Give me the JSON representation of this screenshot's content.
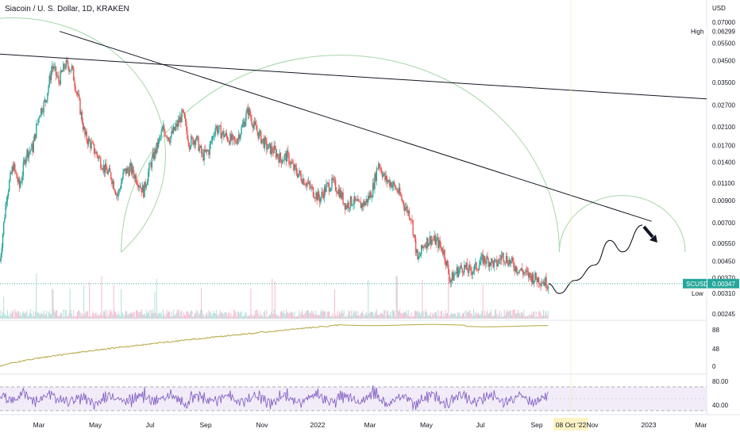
{
  "header": {
    "title": "Siacoin / U. S. Dollar, 1D, KRAKEN",
    "currency": "USD"
  },
  "colors": {
    "up": "#26a69a",
    "down": "#ef5350",
    "cycle_arc": "#a5d6a7",
    "trendline": "#131722",
    "price_line": "#26a69a",
    "volume_up": "#b2dfdb",
    "volume_down": "#f8bbd0",
    "obv_line": "#b5a642",
    "rsi_line": "#7e57c2",
    "rsi_band": "#ede7f6"
  },
  "price_axis": {
    "ticks": [
      "0.07000",
      "0.05500",
      "0.04500",
      "0.03500",
      "0.02700",
      "0.02100",
      "0.01700",
      "0.01400",
      "0.01100",
      "0.00900",
      "0.00700",
      "0.00550",
      "0.00450",
      "0.00370",
      "0.00310",
      "0.00245"
    ],
    "scale": "log"
  },
  "markers": {
    "high": {
      "label": "High",
      "value": "0.06299"
    },
    "last": {
      "label": "SCUSD",
      "value": "0.00347"
    },
    "low": {
      "label": "Low",
      "value": "0.00310"
    }
  },
  "obv_axis": {
    "ticks": [
      "88",
      "48",
      "0"
    ]
  },
  "rsi_axis": {
    "ticks": [
      "80.00",
      "40.00"
    ]
  },
  "time_axis": {
    "labels": [
      "Mar",
      "May",
      "Jul",
      "Sep",
      "Nov",
      "2022",
      "Mar",
      "May",
      "Jul",
      "Sep",
      "08 Oct '22",
      "Nov",
      "2023",
      "Mar"
    ],
    "highlight_index": 10
  },
  "chart_data": {
    "type": "candlestick",
    "title": "Siacoin / U. S. Dollar, 1D, KRAKEN",
    "scale": "log",
    "ylim": [
      0.00245,
      0.07
    ],
    "x_start": "2021-02-15",
    "x_end": "2023-03-15",
    "price_path": [
      [
        "2021-02-15",
        0.0045
      ],
      [
        "2021-02-22",
        0.0095
      ],
      [
        "2021-03-01",
        0.0135
      ],
      [
        "2021-03-08",
        0.0105
      ],
      [
        "2021-03-15",
        0.0155
      ],
      [
        "2021-03-22",
        0.0165
      ],
      [
        "2021-03-29",
        0.0245
      ],
      [
        "2021-04-05",
        0.0285
      ],
      [
        "2021-04-12",
        0.0425
      ],
      [
        "2021-04-19",
        0.0355
      ],
      [
        "2021-04-26",
        0.043
      ],
      [
        "2021-05-03",
        0.041
      ],
      [
        "2021-05-10",
        0.029
      ],
      [
        "2021-05-17",
        0.019
      ],
      [
        "2021-05-24",
        0.017
      ],
      [
        "2021-05-31",
        0.015
      ],
      [
        "2021-06-07",
        0.013
      ],
      [
        "2021-06-14",
        0.012
      ],
      [
        "2021-06-21",
        0.0095
      ],
      [
        "2021-06-28",
        0.0125
      ],
      [
        "2021-07-05",
        0.013
      ],
      [
        "2021-07-12",
        0.0115
      ],
      [
        "2021-07-19",
        0.01
      ],
      [
        "2021-07-26",
        0.0135
      ],
      [
        "2021-08-02",
        0.0165
      ],
      [
        "2021-08-09",
        0.0205
      ],
      [
        "2021-08-16",
        0.0185
      ],
      [
        "2021-08-23",
        0.021
      ],
      [
        "2021-08-30",
        0.0245
      ],
      [
        "2021-09-06",
        0.0175
      ],
      [
        "2021-09-13",
        0.0185
      ],
      [
        "2021-09-20",
        0.015
      ],
      [
        "2021-09-27",
        0.016
      ],
      [
        "2021-10-04",
        0.021
      ],
      [
        "2021-10-11",
        0.0195
      ],
      [
        "2021-10-18",
        0.0185
      ],
      [
        "2021-10-25",
        0.0175
      ],
      [
        "2021-11-01",
        0.0205
      ],
      [
        "2021-11-08",
        0.0255
      ],
      [
        "2021-11-15",
        0.021
      ],
      [
        "2021-11-22",
        0.0185
      ],
      [
        "2021-11-29",
        0.0165
      ],
      [
        "2021-12-06",
        0.016
      ],
      [
        "2021-12-13",
        0.0145
      ],
      [
        "2021-12-20",
        0.015
      ],
      [
        "2021-12-27",
        0.013
      ],
      [
        "2022-01-03",
        0.012
      ],
      [
        "2022-01-10",
        0.011
      ],
      [
        "2022-01-17",
        0.01
      ],
      [
        "2022-01-24",
        0.0092
      ],
      [
        "2022-01-31",
        0.0105
      ],
      [
        "2022-02-07",
        0.011
      ],
      [
        "2022-02-14",
        0.01
      ],
      [
        "2022-02-21",
        0.0085
      ],
      [
        "2022-02-28",
        0.009
      ],
      [
        "2022-03-07",
        0.0085
      ],
      [
        "2022-03-14",
        0.0088
      ],
      [
        "2022-03-21",
        0.01
      ],
      [
        "2022-03-28",
        0.014
      ],
      [
        "2022-04-04",
        0.0115
      ],
      [
        "2022-04-11",
        0.011
      ],
      [
        "2022-04-18",
        0.01
      ],
      [
        "2022-04-25",
        0.0085
      ],
      [
        "2022-05-02",
        0.0075
      ],
      [
        "2022-05-09",
        0.0045
      ],
      [
        "2022-05-16",
        0.0055
      ],
      [
        "2022-05-23",
        0.0058
      ],
      [
        "2022-05-30",
        0.0056
      ],
      [
        "2022-06-06",
        0.005
      ],
      [
        "2022-06-13",
        0.0036
      ],
      [
        "2022-06-20",
        0.004
      ],
      [
        "2022-06-27",
        0.0042
      ],
      [
        "2022-07-04",
        0.004
      ],
      [
        "2022-07-11",
        0.0042
      ],
      [
        "2022-07-18",
        0.0046
      ],
      [
        "2022-07-25",
        0.0045
      ],
      [
        "2022-08-01",
        0.0043
      ],
      [
        "2022-08-08",
        0.0048
      ],
      [
        "2022-08-15",
        0.0045
      ],
      [
        "2022-08-22",
        0.0042
      ],
      [
        "2022-08-29",
        0.004
      ],
      [
        "2022-09-05",
        0.0038
      ],
      [
        "2022-09-12",
        0.0037
      ],
      [
        "2022-09-19",
        0.0036
      ],
      [
        "2022-09-26",
        0.00347
      ]
    ],
    "projection": [
      [
        "2022-10-08",
        0.0031
      ],
      [
        "2022-10-25",
        0.0036
      ],
      [
        "2022-11-15",
        0.0043
      ],
      [
        "2022-12-01",
        0.0057
      ],
      [
        "2022-12-15",
        0.005
      ],
      [
        "2023-01-05",
        0.0068
      ]
    ],
    "trendlines": [
      {
        "from": [
          "2021-02-15",
          0.0485
        ],
        "to": [
          "2023-03-15",
          0.029
        ]
      },
      {
        "from": [
          "2021-04-20",
          0.063
        ],
        "to": [
          "2023-01-15",
          0.0071
        ]
      }
    ],
    "cycle_lows": [
      "2021-06-25",
      "2022-10-08",
      "2023-02-20"
    ],
    "high": 0.06299,
    "low": 0.0031,
    "last": 0.00347
  }
}
